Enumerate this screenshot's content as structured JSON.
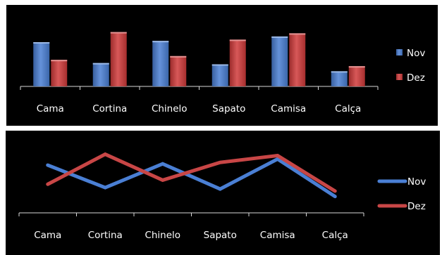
{
  "chart_data": [
    {
      "type": "bar",
      "title": "",
      "xlabel": "",
      "ylabel": "",
      "categories": [
        "Cama",
        "Cortina",
        "Chinelo",
        "Sapato",
        "Camisa",
        "Calça"
      ],
      "series": [
        {
          "name": "Nov",
          "values": [
            70,
            37,
            72,
            35,
            79,
            24
          ],
          "color": "#4a7fd4"
        },
        {
          "name": "Dez",
          "values": [
            42,
            86,
            48,
            74,
            84,
            32
          ],
          "color": "#d03a3a"
        }
      ],
      "ylim": [
        0,
        100
      ],
      "grid": false,
      "legend": "right"
    },
    {
      "type": "line",
      "title": "",
      "xlabel": "",
      "ylabel": "",
      "categories": [
        "Cama",
        "Cortina",
        "Chinelo",
        "Sapato",
        "Camisa",
        "Calça"
      ],
      "series": [
        {
          "name": "Nov",
          "values": [
            70,
            37,
            72,
            35,
            79,
            24
          ],
          "color": "#4a7fd4"
        },
        {
          "name": "Dez",
          "values": [
            42,
            86,
            48,
            74,
            84,
            32
          ],
          "color": "#c84646"
        }
      ],
      "ylim": [
        0,
        100
      ],
      "grid": false,
      "legend": "right"
    }
  ]
}
